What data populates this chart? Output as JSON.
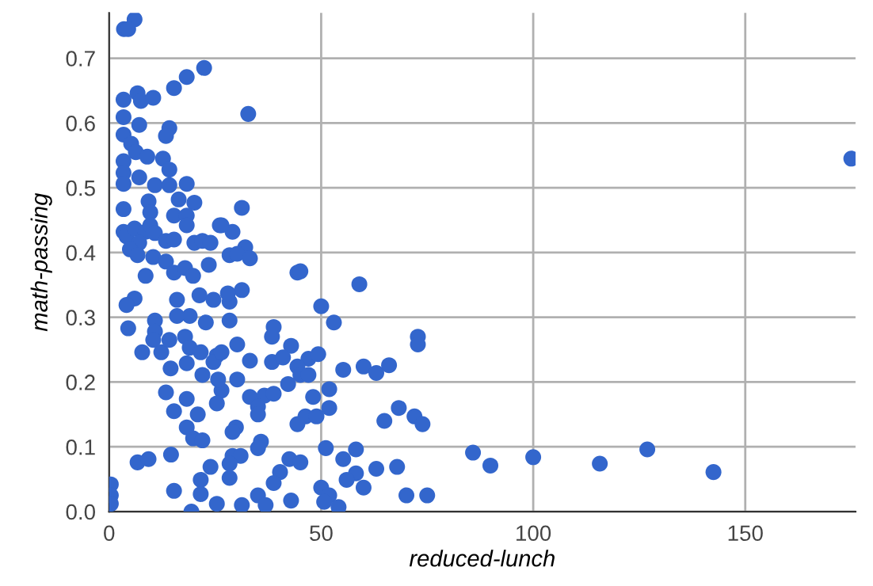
{
  "chart_data": {
    "type": "scatter",
    "xlabel": "reduced-lunch",
    "ylabel": "math-passing",
    "xlim": [
      0,
      176
    ],
    "ylim": [
      0,
      0.77
    ],
    "xticks": [
      0,
      50,
      100,
      150
    ],
    "yticks": [
      {
        "value": 0,
        "label": "0.0"
      },
      0.1,
      0.2,
      0.3,
      0.4,
      0.5,
      0.6,
      0.7
    ],
    "grid": true,
    "marker": "circle",
    "series": [
      {
        "color": "#3366cc",
        "x": [
          6,
          3.5,
          4.5,
          22.4,
          18.3,
          15.3,
          32.8,
          3.4,
          6.7,
          7.5,
          10.4,
          3.4,
          7.1,
          14.2,
          13.4,
          3.4,
          5.2,
          6.3,
          3.4,
          3.4,
          3.4,
          7.1,
          9,
          12.7,
          14.2,
          10.8,
          14.2,
          18.3,
          3.4,
          9.3,
          20.1,
          9.7,
          15.3,
          16.4,
          18.3,
          3.4,
          4.1,
          6,
          8.6,
          9.7,
          10.8,
          7.1,
          13.4,
          15.3,
          18.3,
          26.1,
          4.9,
          6.7,
          10.4,
          13.4,
          20.1,
          22,
          23.9,
          8.6,
          15.3,
          17.9,
          19.8,
          23.5,
          6,
          4.1,
          4.5,
          10.8,
          10.8,
          10.4,
          7.8,
          12.3,
          17.9,
          19,
          21.6,
          25.4,
          13.4,
          18.3,
          15.3,
          20.9,
          18.3,
          19.8,
          22,
          14.6,
          6.7,
          9.3,
          23.9,
          21.6,
          15.3,
          21.6,
          0.4,
          0.4,
          0.4,
          19.4,
          25.4,
          26.5,
          25.7,
          25.4,
          31.3,
          29.1,
          26.5,
          32.1,
          28.4,
          30.2,
          33.2,
          44.4,
          45.1,
          59,
          31.3,
          28.4,
          50,
          28.4,
          53,
          38.8,
          38.4,
          30.2,
          42.9,
          72.8,
          72.8,
          33.2,
          38.4,
          41,
          47,
          49.3,
          44.4,
          45.1,
          47,
          55.2,
          60,
          63,
          66,
          30.2,
          42.2,
          51.9,
          33.2,
          36.6,
          38.8,
          35.1,
          48.1,
          51.9,
          35.1,
          68.3,
          64.9,
          72,
          73.9,
          46.3,
          48.9,
          44.4,
          29.9,
          29.1,
          35.8,
          35.1,
          51.1,
          58.2,
          55.2,
          29.1,
          31,
          28.4,
          42.5,
          45.1,
          63,
          67.9,
          40.3,
          38.8,
          28.4,
          58.2,
          56,
          60,
          50,
          51.9,
          50.7,
          54.1,
          70.1,
          75,
          35.1,
          31.3,
          36.9,
          42.9,
          85.8,
          89.9,
          100,
          115.7,
          126.9,
          142.5,
          175,
          16,
          21.3,
          24.6,
          28,
          19,
          22.8,
          16,
          14.2,
          18.3,
          22,
          24.6,
          26.5,
          14.5
        ],
        "values": [
          0.76,
          0.745,
          0.745,
          0.685,
          0.671,
          0.654,
          0.614,
          0.636,
          0.646,
          0.634,
          0.639,
          0.609,
          0.597,
          0.592,
          0.58,
          0.582,
          0.568,
          0.555,
          0.541,
          0.523,
          0.506,
          0.516,
          0.548,
          0.545,
          0.528,
          0.504,
          0.504,
          0.506,
          0.467,
          0.479,
          0.477,
          0.462,
          0.457,
          0.482,
          0.457,
          0.432,
          0.425,
          0.437,
          0.432,
          0.442,
          0.43,
          0.415,
          0.418,
          0.42,
          0.442,
          0.442,
          0.405,
          0.396,
          0.393,
          0.386,
          0.415,
          0.418,
          0.415,
          0.364,
          0.369,
          0.376,
          0.364,
          0.381,
          0.329,
          0.319,
          0.283,
          0.295,
          0.278,
          0.265,
          0.246,
          0.246,
          0.27,
          0.253,
          0.246,
          0.241,
          0.184,
          0.174,
          0.155,
          0.15,
          0.13,
          0.113,
          0.11,
          0.088,
          0.076,
          0.081,
          0.069,
          0.049,
          0.032,
          0.027,
          0.042,
          0.025,
          0.012,
          0.0,
          0.012,
          0.187,
          0.204,
          0.167,
          0.469,
          0.432,
          0.442,
          0.408,
          0.396,
          0.398,
          0.391,
          0.369,
          0.371,
          0.351,
          0.342,
          0.324,
          0.317,
          0.295,
          0.292,
          0.285,
          0.27,
          0.258,
          0.256,
          0.27,
          0.258,
          0.233,
          0.231,
          0.238,
          0.236,
          0.243,
          0.224,
          0.211,
          0.211,
          0.219,
          0.224,
          0.214,
          0.226,
          0.204,
          0.197,
          0.189,
          0.177,
          0.179,
          0.182,
          0.162,
          0.177,
          0.16,
          0.15,
          0.16,
          0.14,
          0.147,
          0.135,
          0.147,
          0.147,
          0.135,
          0.13,
          0.123,
          0.108,
          0.098,
          0.098,
          0.096,
          0.081,
          0.086,
          0.086,
          0.074,
          0.081,
          0.076,
          0.066,
          0.069,
          0.061,
          0.044,
          0.052,
          0.059,
          0.049,
          0.037,
          0.037,
          0.025,
          0.015,
          0.007,
          0.025,
          0.025,
          0.025,
          0.01,
          0.01,
          0.017,
          0.091,
          0.071,
          0.084,
          0.074,
          0.096,
          0.061,
          0.545,
          0.327,
          0.334,
          0.327,
          0.337,
          0.302,
          0.292,
          0.302,
          0.265,
          0.229,
          0.211,
          0.231,
          0.246,
          0.221
        ]
      }
    ]
  }
}
